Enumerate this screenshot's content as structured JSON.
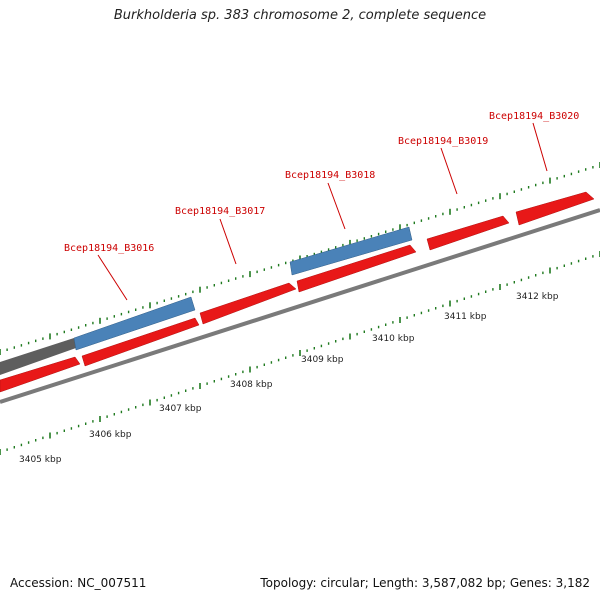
{
  "title": "Burkholderia sp. 383 chromosome 2, complete sequence",
  "accession": "Accession: NC_007511",
  "summary": "Topology: circular; Length: 3,587,082 bp; Genes: 3,182",
  "colors": {
    "forward_gene": "#e81818",
    "highlight_gene": "#4a82b8",
    "other_gene": "#5e5e5e",
    "backbone": "#7a7a7a",
    "ticks": "#1f7a1f",
    "gene_label": "#cc0000"
  },
  "scale_labels": [
    "3405 kbp",
    "3406 kbp",
    "3407 kbp",
    "3408 kbp",
    "3409 kbp",
    "3410 kbp",
    "3411 kbp",
    "3412 kbp"
  ],
  "gene_labels": [
    "Bcep18194_B3016",
    "Bcep18194_B3017",
    "Bcep18194_B3018",
    "Bcep18194_B3019",
    "Bcep18194_B3020"
  ]
}
